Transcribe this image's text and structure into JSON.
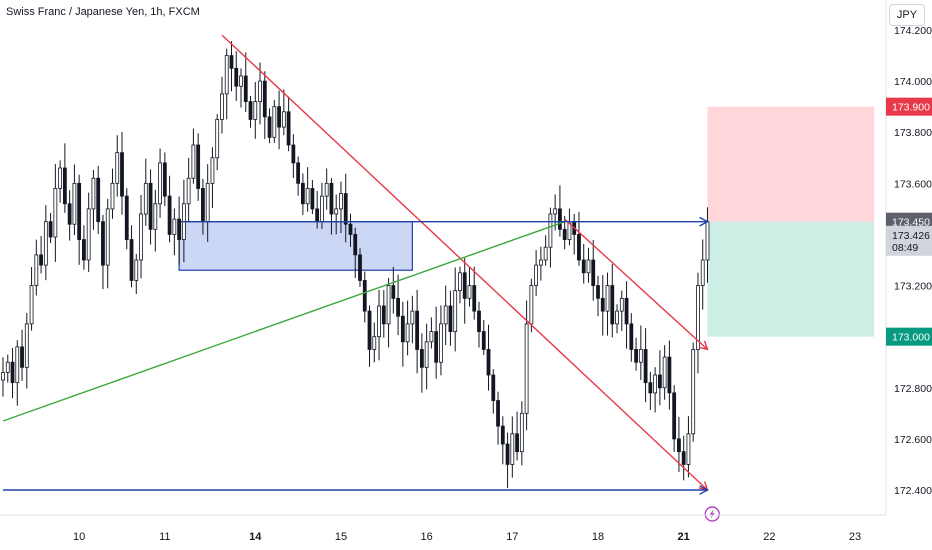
{
  "header": {
    "title": "Swiss Franc / Japanese Yen, 1h, FXCM",
    "currency": "JPY"
  },
  "colors": {
    "up_candle": "#131722",
    "down_candle": "#131722",
    "trend_red": "#e8394a",
    "trend_green": "#3ca83c",
    "zone_blue": "#2040a8",
    "zone_fill": "#ccd7f5",
    "stop_fill": "#ffd6d9",
    "target_fill": "#cdeee5",
    "tag_red": "#e8394a",
    "tag_green": "#089981",
    "tag_current": "#d1d4dc",
    "tag_entry": "#5d606b"
  },
  "chart_data": {
    "type": "candlestick",
    "instrument": "Swiss Franc / Japanese Yen",
    "timeframe": "1h",
    "ylim": [
      172.34,
      174.25
    ],
    "y_ticks": [
      {
        "value": 174.2,
        "label": "174.200"
      },
      {
        "value": 174.0,
        "label": "174.000"
      },
      {
        "value": 173.8,
        "label": "173.800"
      },
      {
        "value": 173.6,
        "label": "173.600"
      },
      {
        "value": 173.2,
        "label": "173.200"
      },
      {
        "value": 172.8,
        "label": "172.800"
      },
      {
        "value": 172.6,
        "label": "172.600"
      },
      {
        "value": 172.4,
        "label": "172.400"
      }
    ],
    "x_ticks": [
      {
        "bar": 16,
        "label": "10",
        "bold": false
      },
      {
        "bar": 34,
        "label": "11",
        "bold": false
      },
      {
        "bar": 53,
        "label": "14",
        "bold": true
      },
      {
        "bar": 71,
        "label": "15",
        "bold": false
      },
      {
        "bar": 89,
        "label": "16",
        "bold": false
      },
      {
        "bar": 107,
        "label": "17",
        "bold": false
      },
      {
        "bar": 125,
        "label": "18",
        "bold": false
      },
      {
        "bar": 143,
        "label": "21",
        "bold": true
      },
      {
        "bar": 161,
        "label": "22",
        "bold": false
      },
      {
        "bar": 179,
        "label": "23",
        "bold": false
      }
    ],
    "bars_total": 198,
    "candles_close": [
      172.86,
      172.9,
      172.82,
      172.96,
      172.88,
      173.05,
      173.2,
      173.32,
      173.28,
      173.45,
      173.39,
      173.58,
      173.66,
      173.52,
      173.44,
      173.6,
      173.38,
      173.3,
      173.5,
      173.62,
      173.45,
      173.28,
      173.5,
      173.6,
      173.72,
      173.55,
      173.38,
      173.22,
      173.3,
      173.48,
      173.6,
      173.42,
      173.52,
      173.68,
      173.55,
      173.4,
      173.46,
      173.38,
      173.52,
      173.62,
      173.75,
      173.58,
      173.45,
      173.6,
      173.7,
      173.85,
      173.95,
      174.1,
      174.05,
      173.98,
      174.02,
      173.92,
      173.85,
      173.92,
      174.0,
      173.86,
      173.78,
      173.9,
      173.82,
      173.88,
      173.75,
      173.68,
      173.6,
      173.52,
      173.58,
      173.5,
      173.45,
      173.55,
      173.6,
      173.48,
      173.5,
      173.56,
      173.44,
      173.4,
      173.32,
      173.22,
      173.1,
      172.95,
      173.0,
      173.12,
      173.05,
      173.2,
      173.15,
      173.08,
      172.98,
      173.05,
      173.1,
      172.95,
      172.88,
      172.98,
      173.02,
      172.9,
      173.05,
      173.12,
      173.02,
      173.18,
      173.25,
      173.15,
      173.2,
      173.1,
      173.02,
      172.95,
      172.85,
      172.75,
      172.65,
      172.58,
      172.5,
      172.62,
      172.55,
      172.7,
      173.05,
      173.2,
      173.28,
      173.3,
      173.35,
      173.48,
      173.5,
      173.42,
      173.38,
      173.45,
      173.4,
      173.3,
      173.25,
      173.3,
      173.2,
      173.15,
      173.1,
      173.2,
      173.05,
      173.1,
      173.15,
      173.05,
      172.95,
      172.9,
      172.95,
      172.82,
      172.78,
      172.85,
      172.8,
      172.92,
      172.78,
      172.6,
      172.55,
      172.5,
      172.62,
      172.95,
      173.2,
      173.3,
      173.45
    ],
    "drawings": {
      "blue_zone": {
        "bar_start": 37,
        "bar_end": 86,
        "price_top": 173.45,
        "price_bottom": 173.26
      },
      "red_trendline": {
        "bar_start": 46,
        "price_start": 174.18,
        "bar_end": 148,
        "price_end": 172.4
      },
      "red_channel_line": {
        "bar_start": 118,
        "price_start": 173.46,
        "bar_end": 148,
        "price_end": 172.95
      },
      "green_trendline": {
        "bar_start": 0,
        "price_start": 172.67,
        "bar_end": 118,
        "price_end": 173.45
      },
      "resistance_line": {
        "bar_start": 0,
        "bar_end": 148,
        "price": 173.45
      },
      "support_line": {
        "bar_start": 0,
        "bar_end": 148,
        "price": 172.4
      },
      "stop_box": {
        "bar_start": 148,
        "bar_end": 183,
        "price_top": 173.9,
        "price_bottom": 173.45
      },
      "target_box": {
        "bar_start": 148,
        "bar_end": 183,
        "price_top": 173.45,
        "price_bottom": 173.0
      }
    },
    "price_tags": [
      {
        "name": "stop",
        "value": 173.9,
        "label": "173.900",
        "style": "red"
      },
      {
        "name": "entry",
        "value": 173.45,
        "label": "173.450",
        "style": "entry"
      },
      {
        "name": "current",
        "value": 173.426,
        "label": "173.426",
        "sub": "08:49",
        "style": "current"
      },
      {
        "name": "target",
        "value": 173.0,
        "label": "173.000",
        "style": "green"
      }
    ]
  }
}
